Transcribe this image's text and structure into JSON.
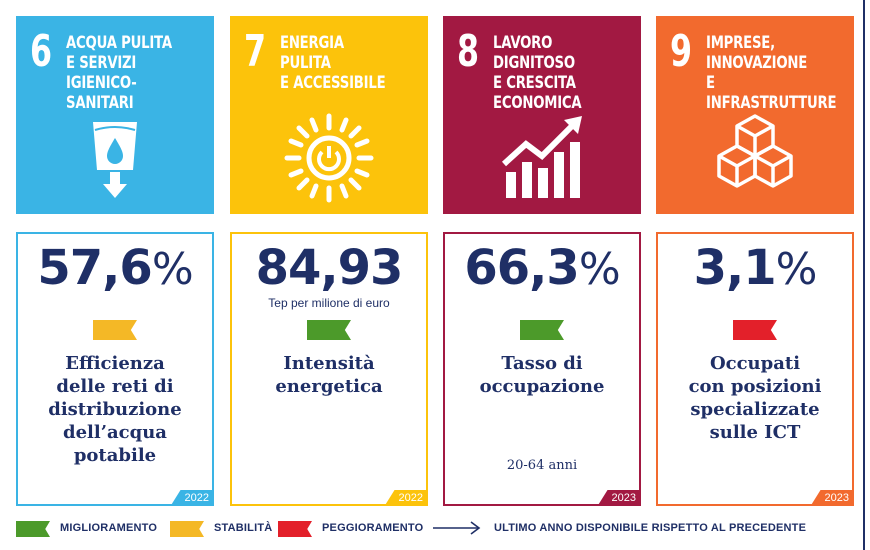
{
  "colors": {
    "sdg6": "#3ab4e5",
    "sdg7": "#fcc30b",
    "sdg8": "#a21942",
    "sdg9": "#f26a2e",
    "navy": "#1f2f66",
    "improving": "#4c9a2a",
    "stable": "#f4b826",
    "worsening": "#e3202a"
  },
  "goals": [
    {
      "number": "6",
      "title": "ACQUA PULITA\nE SERVIZI\nIGIENICO-SANITARI",
      "icon": "water-glass-icon"
    },
    {
      "number": "7",
      "title": "ENERGIA PULITA\nE ACCESSIBILE",
      "icon": "sun-power-icon"
    },
    {
      "number": "8",
      "title": "LAVORO DIGNITOSO\nE CRESCITA\nECONOMICA",
      "icon": "growth-chart-icon"
    },
    {
      "number": "9",
      "title": "IMPRESE,\nINNOVAZIONE\nE INFRASTRUTTURE",
      "icon": "cubes-icon"
    }
  ],
  "indicators": [
    {
      "value": "57,6",
      "suffix": "%",
      "unit": "",
      "trend": "stable",
      "label": "Efficienza\ndelle reti di\ndistribuzione\ndell’acqua\npotabile",
      "note": "",
      "year": "2022"
    },
    {
      "value": "84,93",
      "suffix": "",
      "unit": "Tep per milione di euro",
      "trend": "improving",
      "label": "Intensità\nenergetica",
      "note": "",
      "year": "2022"
    },
    {
      "value": "66,3",
      "suffix": "%",
      "unit": "",
      "trend": "improving",
      "label": "Tasso di\noccupazione",
      "note": "20-64 anni",
      "year": "2023"
    },
    {
      "value": "3,1",
      "suffix": "%",
      "unit": "",
      "trend": "worsening",
      "label": "Occupati\ncon posizioni\nspecializzate\nsulle ICT",
      "note": "",
      "year": "2023"
    }
  ],
  "legend": {
    "improving": "MIGLIORAMENTO",
    "stable": "STABILITÀ",
    "worsening": "PEGGIORAMENTO",
    "arrow_text": "ULTIMO ANNO DISPONIBILE RISPETTO AL PRECEDENTE"
  }
}
